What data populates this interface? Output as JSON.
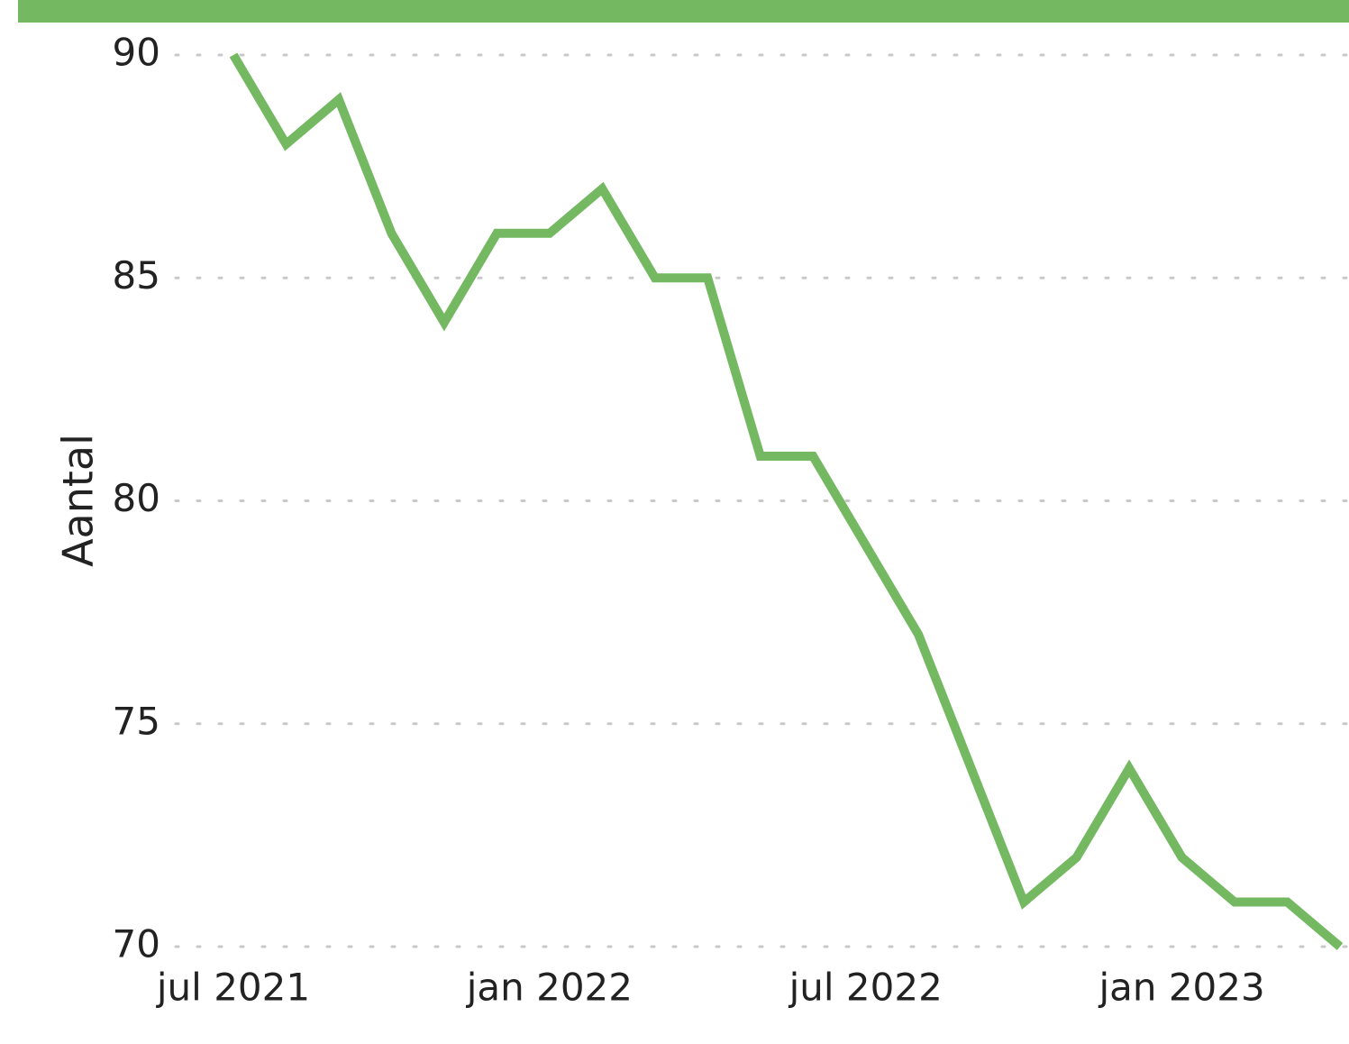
{
  "chart_data": {
    "type": "line",
    "y_label": "Aantal",
    "x": [
      "2021-07",
      "2021-08",
      "2021-09",
      "2021-10",
      "2021-11",
      "2021-12",
      "2022-01",
      "2022-02",
      "2022-03",
      "2022-04",
      "2022-05",
      "2022-06",
      "2022-07",
      "2022-08",
      "2022-09",
      "2022-10",
      "2022-11",
      "2022-12",
      "2023-01",
      "2023-02",
      "2023-03",
      "2023-04"
    ],
    "series": [
      {
        "color": "#74b962",
        "values": [
          90,
          88,
          89,
          86,
          84,
          86,
          86,
          87,
          85,
          85,
          81,
          81,
          79,
          77,
          74,
          71,
          72,
          74,
          72,
          71,
          71,
          70
        ]
      }
    ],
    "xlim": [
      "2021-07",
      "2023-04"
    ],
    "xticks": [
      {
        "value": "2021-07",
        "label": "jul 2021"
      },
      {
        "value": "2022-01",
        "label": "jan 2022"
      },
      {
        "value": "2022-07",
        "label": "jul 2022"
      },
      {
        "value": "2023-01",
        "label": "jan 2023"
      }
    ],
    "ylim": [
      70,
      90
    ],
    "yticks": [
      70,
      75,
      80,
      85,
      90
    ],
    "grid": true
  }
}
